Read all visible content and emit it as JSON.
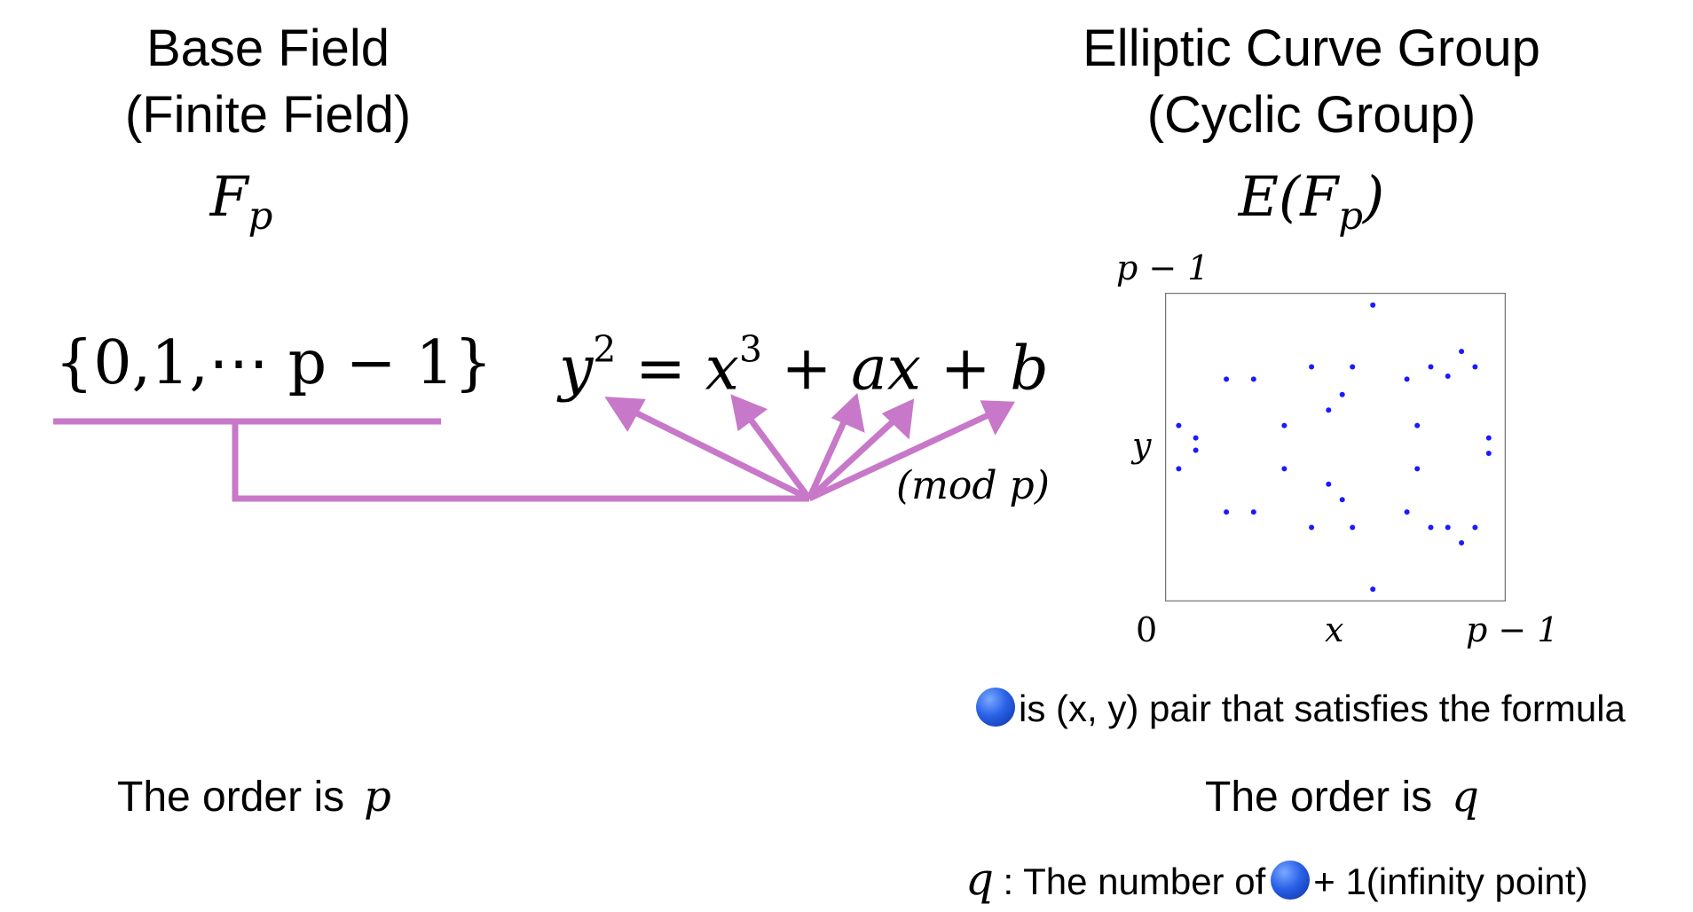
{
  "left": {
    "title_line1": "Base Field",
    "title_line2": "(Finite Field)",
    "symbol_base": "F",
    "symbol_sub": "p",
    "set": "{0,1,⋯ p − 1}",
    "order_label": "The order is",
    "order_symbol": "p"
  },
  "equation": {
    "y": "y",
    "y_exp": "2",
    "eq": " = ",
    "x": "x",
    "x_exp": "3",
    "rest": " + ax + b",
    "mod": "(mod p)"
  },
  "right": {
    "title_line1": "Elliptic Curve Group",
    "title_line2": "(Cyclic Group)",
    "symbol_prefix": "E(",
    "symbol_base": "F",
    "symbol_sub": "p",
    "symbol_suffix": ")",
    "axis_top": "p − 1",
    "axis_y": "y",
    "axis_origin": "0",
    "axis_x": "x",
    "axis_right": "p − 1",
    "legend_text": "is (x, y) pair that satisfies the formula",
    "order_label": "The order is",
    "order_symbol": "q",
    "count_symbol": "q",
    "count_text_before": ": The number of",
    "count_text_after": "+ 1(infinity point)"
  },
  "colors": {
    "connector": "#c878c8",
    "point": "#1a1aff",
    "ball": "#2a62e8",
    "plot_border": "#777777"
  },
  "chart_data": {
    "type": "scatter",
    "xlabel": "x",
    "ylabel": "y",
    "x_tick_labels": [
      "0",
      "p − 1"
    ],
    "y_tick_labels": [
      "p − 1"
    ],
    "note": "points are symmetric about the horizontal midline",
    "points_fraction": [
      [
        0.61,
        0.96
      ],
      [
        0.43,
        0.76
      ],
      [
        0.55,
        0.76
      ],
      [
        0.78,
        0.76
      ],
      [
        0.18,
        0.72
      ],
      [
        0.26,
        0.72
      ],
      [
        0.71,
        0.72
      ],
      [
        0.83,
        0.73
      ],
      [
        0.87,
        0.81
      ],
      [
        0.91,
        0.76
      ],
      [
        0.48,
        0.62
      ],
      [
        0.52,
        0.67
      ],
      [
        0.35,
        0.57
      ],
      [
        0.74,
        0.57
      ],
      [
        0.04,
        0.57
      ],
      [
        0.09,
        0.53
      ],
      [
        0.09,
        0.49
      ],
      [
        0.04,
        0.43
      ],
      [
        0.95,
        0.53
      ],
      [
        0.95,
        0.48
      ],
      [
        0.35,
        0.43
      ],
      [
        0.74,
        0.43
      ],
      [
        0.48,
        0.38
      ],
      [
        0.52,
        0.33
      ],
      [
        0.18,
        0.29
      ],
      [
        0.26,
        0.29
      ],
      [
        0.71,
        0.29
      ],
      [
        0.83,
        0.24
      ],
      [
        0.87,
        0.19
      ],
      [
        0.91,
        0.24
      ],
      [
        0.43,
        0.24
      ],
      [
        0.55,
        0.24
      ],
      [
        0.78,
        0.24
      ],
      [
        0.61,
        0.04
      ]
    ]
  }
}
